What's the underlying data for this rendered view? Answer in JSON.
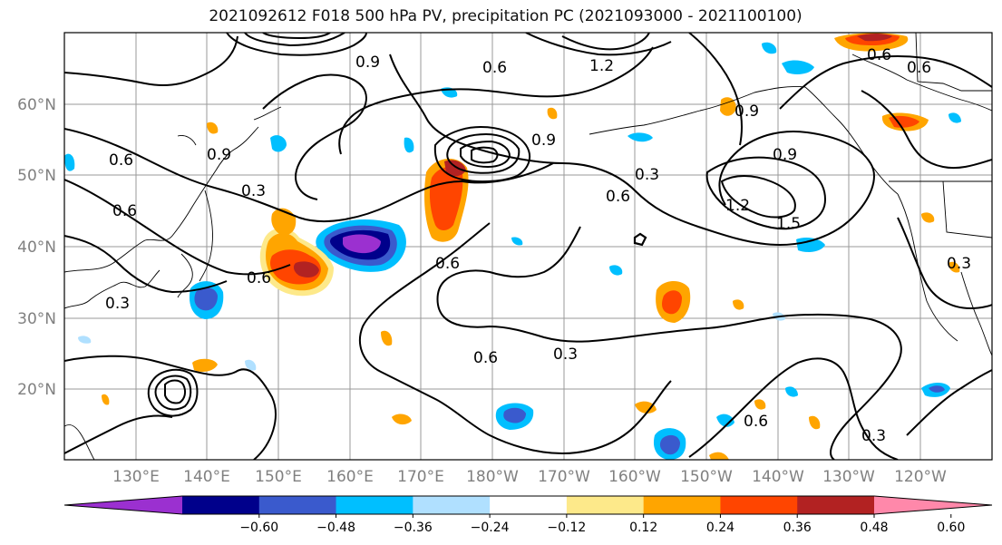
{
  "title": "2021092612 F018 500 hPa PV, precipitation PC (2021093000 - 2021100100)",
  "axes": {
    "lat_labels": [
      "60°N",
      "50°N",
      "40°N",
      "30°N",
      "20°N"
    ],
    "lon_labels": [
      "130°E",
      "140°E",
      "150°E",
      "160°E",
      "170°E",
      "180°W",
      "170°W",
      "160°W",
      "150°W",
      "140°W",
      "130°W",
      "120°W"
    ]
  },
  "colorbar": {
    "colors": [
      "#9b30d0",
      "#00008b",
      "#3a5acd",
      "#00bfff",
      "#b0e0ff",
      "#ffffff",
      "#fde98a",
      "#ffa500",
      "#ff4500",
      "#b22222",
      "#ff88aa"
    ],
    "tick_labels": [
      "−0.60",
      "−0.48",
      "−0.36",
      "−0.24",
      "−0.12",
      "0.12",
      "0.24",
      "0.36",
      "0.48",
      "0.60"
    ]
  },
  "contour_labels": [
    {
      "text": "0.9"
    },
    {
      "text": "0.6"
    },
    {
      "text": "1.2"
    },
    {
      "text": "0.6"
    },
    {
      "text": "0.9"
    },
    {
      "text": "0.6"
    },
    {
      "text": "0.9"
    },
    {
      "text": "1.2"
    },
    {
      "text": "1.5"
    },
    {
      "text": "0.3"
    },
    {
      "text": "0.6"
    },
    {
      "text": "0.3"
    },
    {
      "text": "0.6"
    },
    {
      "text": "0.3"
    },
    {
      "text": "0.6"
    },
    {
      "text": "0.9"
    },
    {
      "text": "0.6"
    },
    {
      "text": "0.3"
    },
    {
      "text": "0.6"
    },
    {
      "text": "0.3"
    },
    {
      "text": "0.6"
    },
    {
      "text": "0.6"
    },
    {
      "text": "0.9"
    },
    {
      "text": "0.3"
    }
  ]
}
